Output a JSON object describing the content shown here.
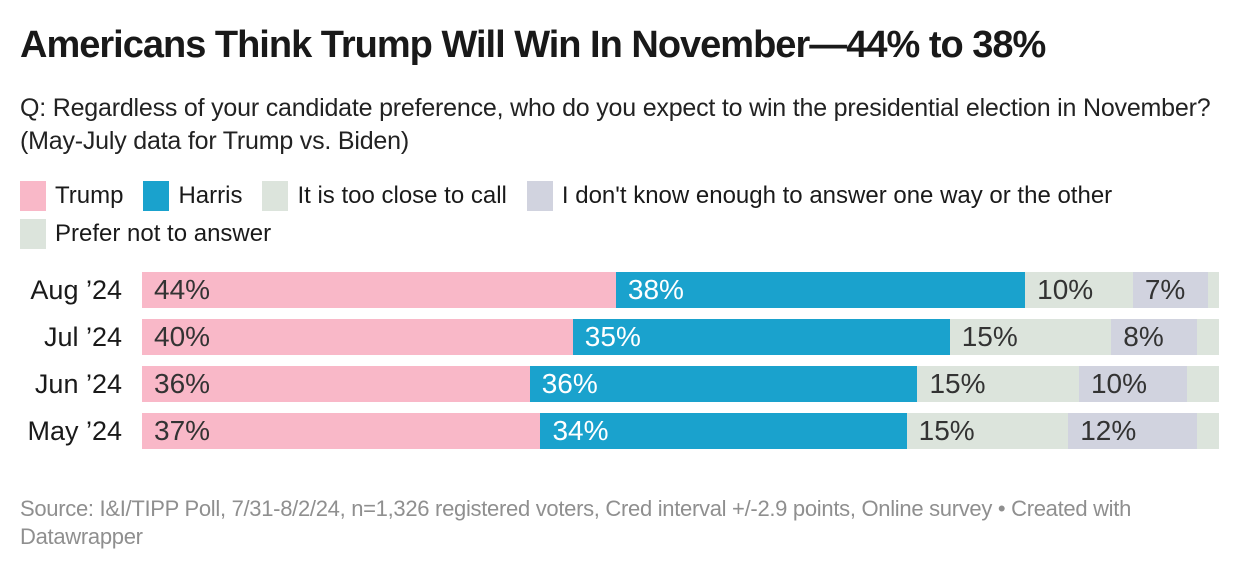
{
  "header": {
    "title": "Americans Think Trump Will Win In November—44% to 38%",
    "question": "Q: Regardless of your candidate preference, who do you expect to win the presidential election in November? (May-July data for Trump vs. Biden)"
  },
  "chart_data": {
    "type": "bar",
    "variant": "stacked-horizontal",
    "unit": "%",
    "xlim": [
      0,
      100
    ],
    "grid": false,
    "legend_position": "top",
    "categories": [
      "Aug ’24",
      "Jul ’24",
      "Jun ’24",
      "May ’24"
    ],
    "series": [
      {
        "name": "Trump",
        "color": "#f9b8c8",
        "label_color": "#333333",
        "labeled": true,
        "values": [
          44,
          40,
          36,
          37
        ]
      },
      {
        "name": "Harris",
        "color": "#1aa2cd",
        "label_color": "#ffffff",
        "labeled": true,
        "values": [
          38,
          35,
          36,
          34
        ]
      },
      {
        "name": "It is too close to call",
        "color": "#dce4dc",
        "label_color": "#333333",
        "labeled": true,
        "values": [
          10,
          15,
          15,
          15
        ]
      },
      {
        "name": "I don't know enough to answer one way or the other",
        "color": "#d1d3df",
        "label_color": "#333333",
        "labeled": true,
        "values": [
          7,
          8,
          10,
          12
        ]
      },
      {
        "name": "Prefer not to answer",
        "color": "#dce4dc",
        "label_color": "#333333",
        "labeled": false,
        "values": [
          1,
          2,
          3,
          2
        ]
      }
    ]
  },
  "footer": {
    "source_text": "Source: I&I/TIPP Poll, 7/31-8/2/24, n=1,326 registered voters, Cred interval +/-2.9 points, Online survey",
    "separator": "•",
    "attribution_prefix": "Created with",
    "attribution_link": "Datawrapper"
  }
}
